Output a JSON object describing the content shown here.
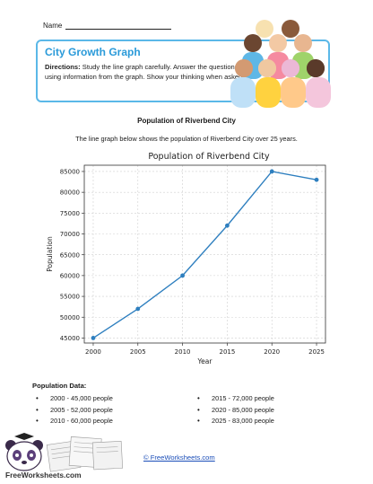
{
  "header": {
    "name_label": "Name",
    "title": "City Growth Graph",
    "directions_label": "Directions:",
    "directions_text": "Study the line graph carefully. Answer the questions using information from the graph. Show your thinking when asked."
  },
  "graph_title": "Population of Riverbend City",
  "graph_description": "The line graph below shows the population of Riverbend City over 25 years.",
  "chart_data": {
    "type": "line",
    "title": "Population of Riverbend City",
    "xlabel": "Year",
    "ylabel": "Population",
    "x": [
      2000,
      2005,
      2010,
      2015,
      2020,
      2025
    ],
    "series": [
      {
        "values": [
          45000,
          52000,
          60000,
          72000,
          85000,
          83000
        ]
      }
    ],
    "xlim": [
      1999,
      2026
    ],
    "ylim": [
      43800,
      86500
    ],
    "yticks": [
      45000,
      50000,
      55000,
      60000,
      65000,
      70000,
      75000,
      80000,
      85000
    ],
    "xticks": [
      2000,
      2005,
      2010,
      2015,
      2020,
      2025
    ],
    "grid": true,
    "line_color": "#2e7fbf"
  },
  "population_data": {
    "heading": "Population Data:",
    "left": [
      "2000 - 45,000 people",
      "2005 - 52,000 people",
      "2010 - 60,000 people"
    ],
    "right": [
      "2015 - 72,000 people",
      "2020 - 85,000 people",
      "2025 - 83,000 people"
    ]
  },
  "footer": {
    "logo_text": "FreeWorksheets.com",
    "link_text": "© FreeWorksheets.com"
  },
  "icons": {
    "people": "people-group-icon",
    "logo": "panda-logo-icon"
  }
}
